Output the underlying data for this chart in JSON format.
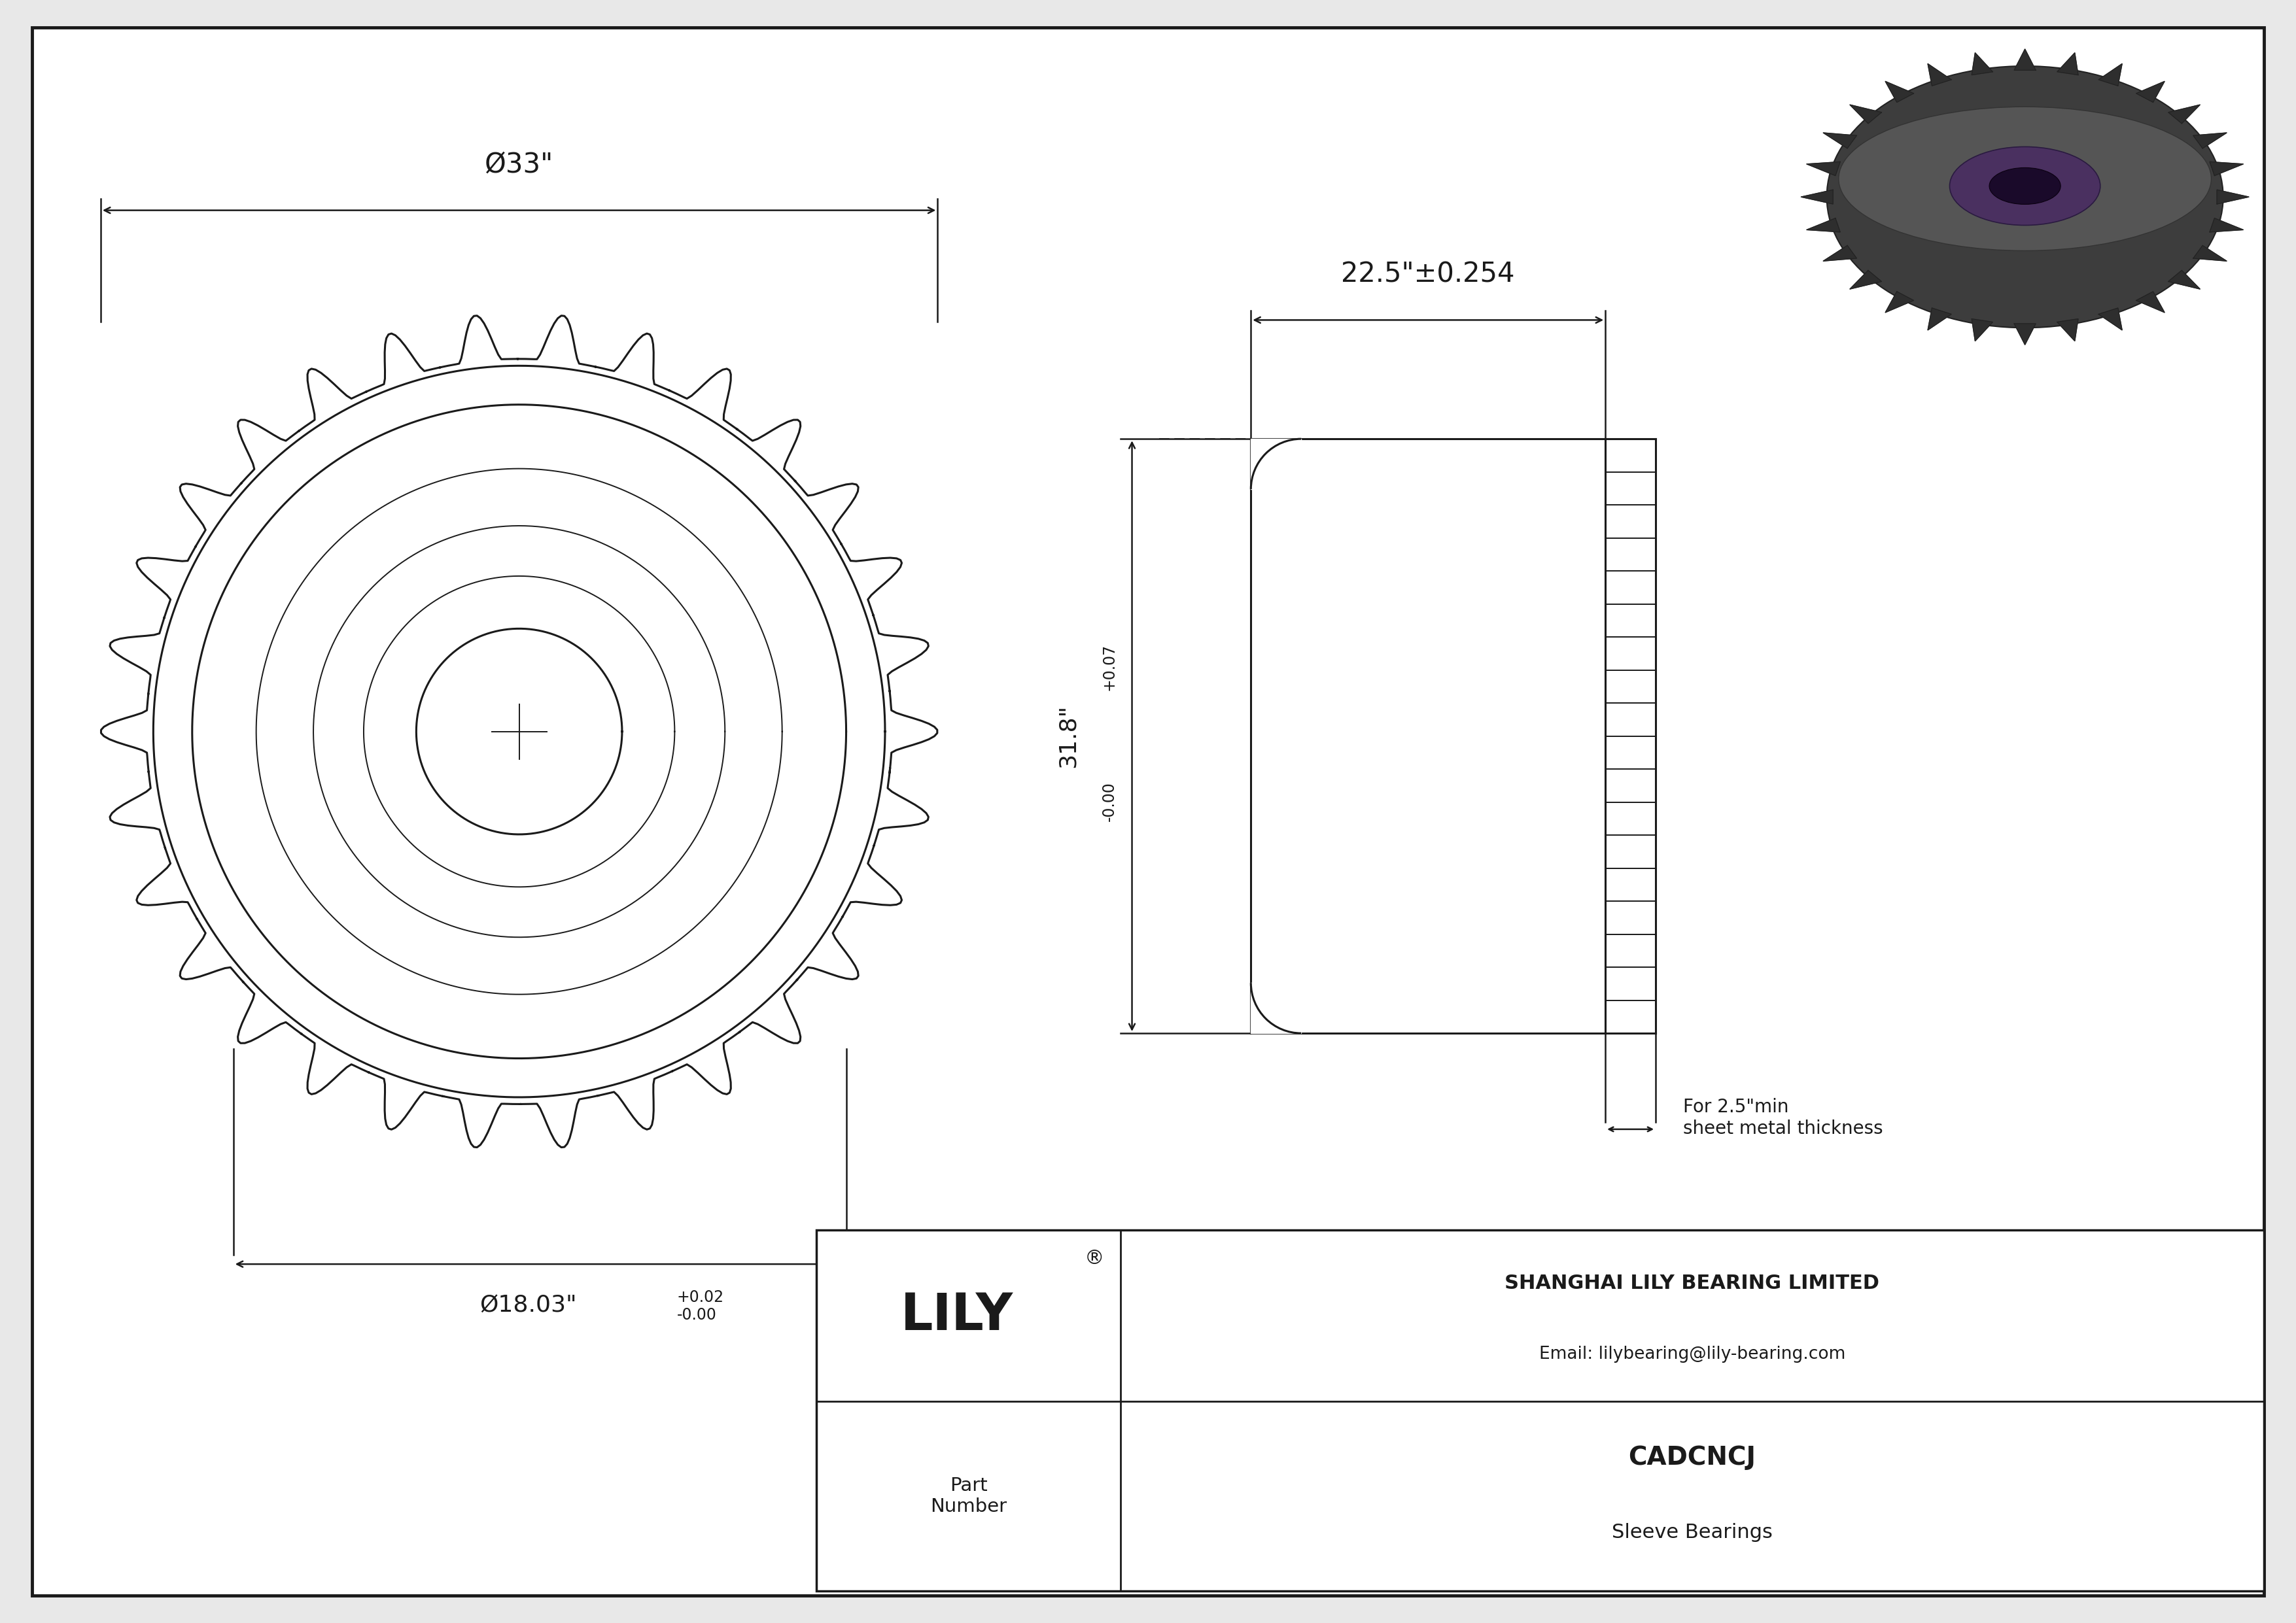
{
  "bg_color": "#e8e8e8",
  "drawing_bg": "#ffffff",
  "line_color": "#1a1a1a",
  "title": "CADCNCJ",
  "subtitle": "Sleeve Bearings",
  "company": "SHANGHAI LILY BEARING LIMITED",
  "email": "Email: lilybearing@lily-bearing.com",
  "part_label": "Part\nNumber",
  "dim1_label": "Ø33\"",
  "dim2_label": "22.5\"±0.254",
  "dim3_main": "31.8\"",
  "dim3_upper": "+0.07",
  "dim3_lower": "-0.00",
  "dim4_main": "Ø18.03\"",
  "dim4_upper": "+0.02",
  "dim4_lower": "-0.00",
  "note_text": "For 2.5\"min\nsheet metal thickness",
  "n_gear_teeth": 30,
  "n_side_teeth": 18,
  "n_3d_teeth": 28
}
